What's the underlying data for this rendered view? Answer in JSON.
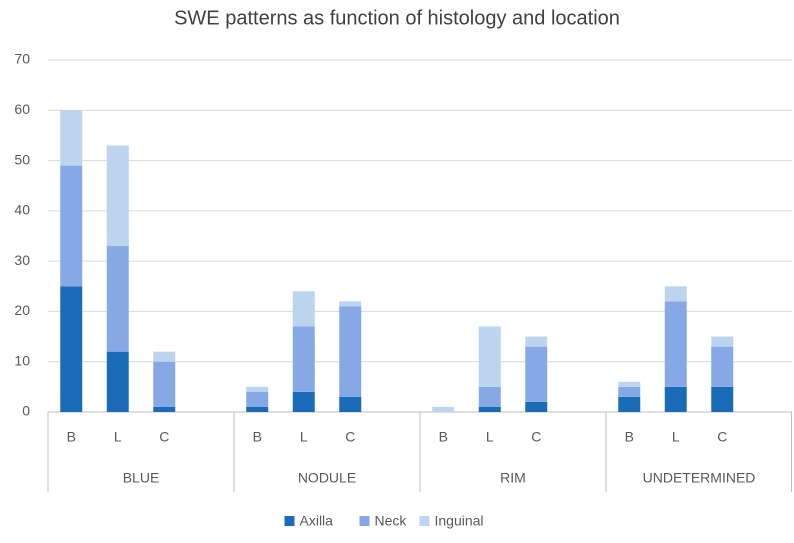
{
  "chart_data": {
    "type": "stacked_bar",
    "title": "SWE patterns as function of histology and location",
    "categories": [
      "B",
      "L",
      "C",
      null,
      "B",
      "L",
      "C",
      null,
      "B",
      "L",
      "C",
      null,
      "B",
      "L",
      "C",
      null
    ],
    "groups": [
      "BLUE",
      "NODULE",
      "RIM",
      "UNDETERMINED"
    ],
    "series": [
      {
        "name": "Axilla",
        "color": "#1b6cb8",
        "values": [
          25,
          12,
          1,
          null,
          1,
          4,
          3,
          null,
          0,
          1,
          2,
          null,
          3,
          5,
          5,
          null
        ]
      },
      {
        "name": "Neck",
        "color": "#86a9e6",
        "values": [
          24,
          21,
          9,
          null,
          3,
          13,
          18,
          null,
          0,
          4,
          11,
          null,
          2,
          17,
          8,
          null
        ]
      },
      {
        "name": "Inguinal",
        "color": "#bcd4ee",
        "values": [
          11,
          20,
          2,
          null,
          1,
          7,
          1,
          null,
          1,
          12,
          2,
          null,
          1,
          3,
          2,
          null
        ]
      }
    ],
    "ylim": [
      0,
      70
    ],
    "yticks": [
      0,
      10,
      20,
      30,
      40,
      50,
      60,
      70
    ],
    "grid": true,
    "legend": "bottom"
  }
}
